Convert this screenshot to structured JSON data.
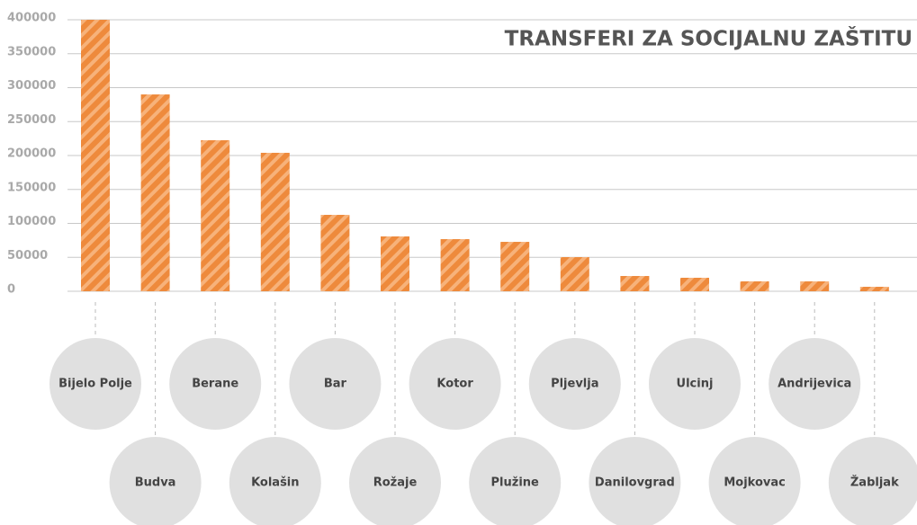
{
  "chart_data": {
    "type": "bar",
    "title": "TRANSFERI ZA SOCIJALNU ZAŠTITU",
    "categories": [
      "Bijelo Polje",
      "Budva",
      "Berane",
      "Kolašin",
      "Bar",
      "Rožaje",
      "Kotor",
      "Plužine",
      "Pljevlja",
      "Danilovgrad",
      "Ulcinj",
      "Mojkovac",
      "Andrijevica",
      "Žabljak"
    ],
    "values": [
      400000,
      290000,
      222500,
      204000,
      112600,
      80800,
      76800,
      72800,
      50300,
      22500,
      19900,
      14600,
      14600,
      6600
    ],
    "color": "#ee8a3c",
    "stripe_color": "#f7b27a",
    "ylim": [
      0,
      400000
    ],
    "yticks": [
      0,
      50000,
      100000,
      150000,
      200000,
      250000,
      300000,
      350000,
      400000
    ],
    "grid": true
  }
}
